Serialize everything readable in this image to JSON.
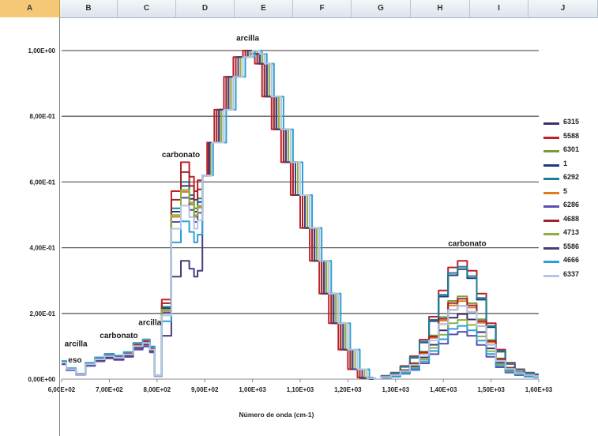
{
  "spreadsheet": {
    "columns": [
      "A",
      "B",
      "C",
      "D",
      "E",
      "F",
      "G",
      "H",
      "I",
      "J"
    ],
    "active_column": "A"
  },
  "chart_data": {
    "type": "line",
    "title": "",
    "xlabel": "Número de onda (cm-1)",
    "ylabel": "",
    "xlim": [
      600,
      1600
    ],
    "ylim": [
      0,
      1
    ],
    "grid": true,
    "legend_position": "right",
    "x_tick_labels": [
      "6,00E+02",
      "7,00E+02",
      "8,00E+02",
      "9,00E+02",
      "1,00E+03",
      "1,10E+03",
      "1,20E+03",
      "1,30E+03",
      "1,40E+03",
      "1,50E+03",
      "1,60E+03"
    ],
    "y_tick_labels": [
      "0,00E+00",
      "2,00E-01",
      "4,00E-01",
      "6,00E-01",
      "8,00E-01",
      "1,00E+00"
    ],
    "x": [
      600,
      620,
      640,
      660,
      680,
      700,
      720,
      740,
      760,
      780,
      790,
      800,
      820,
      840,
      860,
      875,
      880,
      890,
      900,
      920,
      940,
      960,
      980,
      1000,
      1010,
      1020,
      1040,
      1060,
      1080,
      1100,
      1120,
      1140,
      1160,
      1180,
      1200,
      1220,
      1240,
      1260,
      1280,
      1300,
      1320,
      1340,
      1360,
      1380,
      1400,
      1420,
      1440,
      1460,
      1480,
      1500,
      1520,
      1540,
      1560,
      1580,
      1600
    ],
    "base_shape": [
      0.05,
      0.03,
      0.015,
      0.045,
      0.06,
      0.07,
      0.065,
      0.075,
      0.1,
      0.11,
      0.09,
      0.01,
      0.22,
      0.52,
      0.6,
      0.56,
      0.52,
      0.55,
      0.62,
      0.72,
      0.82,
      0.92,
      0.98,
      1.0,
      0.99,
      0.96,
      0.86,
      0.76,
      0.66,
      0.56,
      0.46,
      0.36,
      0.26,
      0.17,
      0.09,
      0.03,
      0.005,
      0.0,
      0.01,
      0.02,
      0.04,
      0.07,
      0.12,
      0.19,
      0.27,
      0.34,
      0.36,
      0.33,
      0.26,
      0.17,
      0.09,
      0.05,
      0.03,
      0.02,
      0.015
    ],
    "series": [
      {
        "name": "6315",
        "color": "#3b2f6b",
        "scale": [
          1.0,
          0.95,
          0.55
        ],
        "shift": 0
      },
      {
        "name": "5588",
        "color": "#c0202a",
        "scale": [
          1.05,
          1.1,
          1.0
        ],
        "shift": -10
      },
      {
        "name": "6301",
        "color": "#7a9a38",
        "scale": [
          1.0,
          0.92,
          0.7
        ],
        "shift": -5
      },
      {
        "name": "1",
        "color": "#1f3a78",
        "scale": [
          0.95,
          0.98,
          0.93
        ],
        "shift": 0
      },
      {
        "name": "6292",
        "color": "#1d7f96",
        "scale": [
          1.0,
          1.0,
          0.95
        ],
        "shift": 5
      },
      {
        "name": "5",
        "color": "#e07a1e",
        "scale": [
          1.1,
          0.95,
          0.66
        ],
        "shift": 10
      },
      {
        "name": "6286",
        "color": "#5b4fb0",
        "scale": [
          0.9,
          0.92,
          0.4
        ],
        "shift": 0
      },
      {
        "name": "4688",
        "color": "#a02428",
        "scale": [
          1.0,
          1.05,
          0.68
        ],
        "shift": -5
      },
      {
        "name": "4713",
        "color": "#8fb140",
        "scale": [
          1.0,
          0.96,
          0.5
        ],
        "shift": 5
      },
      {
        "name": "5586",
        "color": "#4a3b7c",
        "scale": [
          0.95,
          0.6,
          0.62
        ],
        "shift": 0
      },
      {
        "name": "4666",
        "color": "#2e9fd6",
        "scale": [
          1.1,
          0.8,
          0.45
        ],
        "shift": 15
      },
      {
        "name": "6337",
        "color": "#b4c7e4",
        "scale": [
          1.0,
          0.88,
          0.62
        ],
        "shift": 10
      }
    ],
    "annotations": [
      {
        "text": "arcilla",
        "x": 990,
        "y": 1.03
      },
      {
        "text": "carbonato",
        "x": 850,
        "y": 0.675
      },
      {
        "text": "carbonato",
        "x": 1450,
        "y": 0.405
      },
      {
        "text": "arcilla",
        "x": 785,
        "y": 0.165
      },
      {
        "text": "carbonato",
        "x": 720,
        "y": 0.125
      },
      {
        "text": "arcilla",
        "x": 630,
        "y": 0.1
      },
      {
        "text": "eso",
        "x": 628,
        "y": 0.05
      }
    ]
  }
}
